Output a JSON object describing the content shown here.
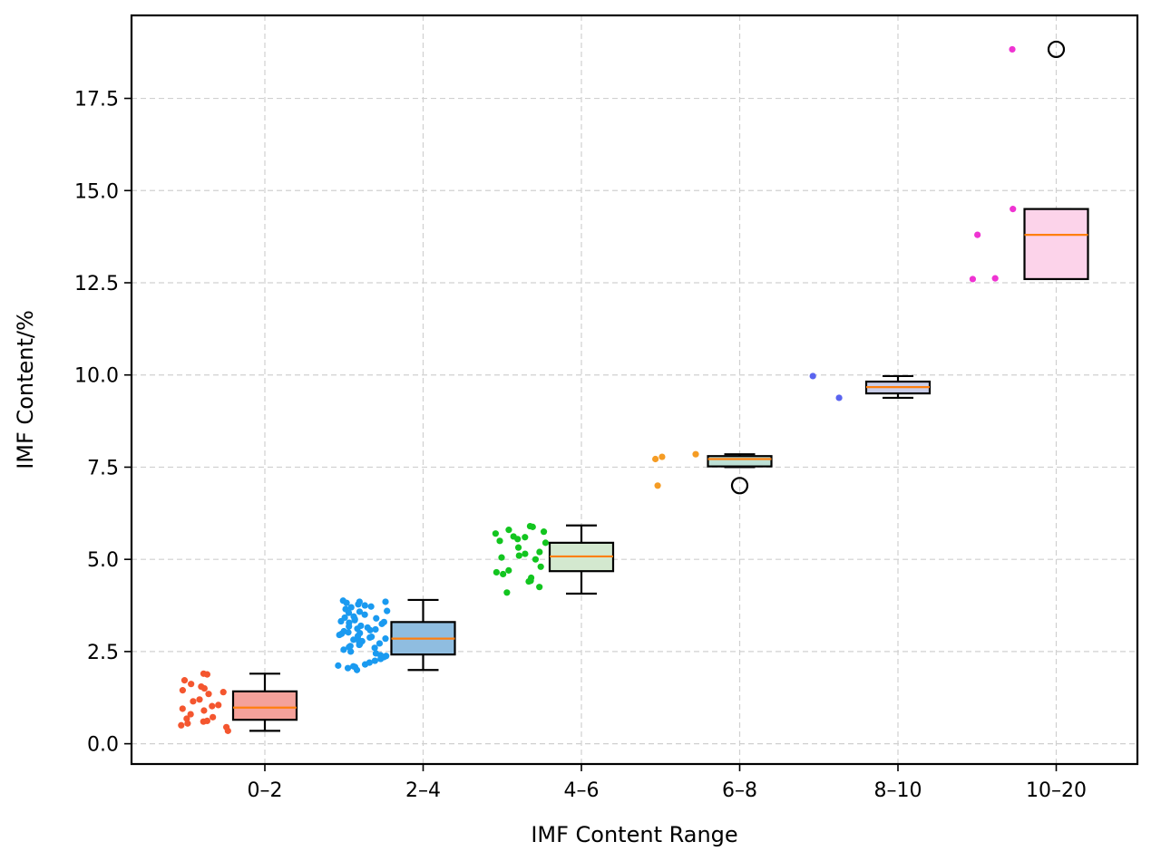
{
  "chart_data": {
    "type": "box",
    "title": "",
    "xlabel": "IMF Content Range",
    "ylabel": "IMF Content/%",
    "ylim": [
      -0.55,
      19.75
    ],
    "yticks": [
      0.0,
      2.5,
      5.0,
      7.5,
      10.0,
      12.5,
      15.0,
      17.5
    ],
    "ytick_labels": [
      "0.0",
      "2.5",
      "5.0",
      "7.5",
      "10.0",
      "12.5",
      "15.0",
      "17.5"
    ],
    "grid": true,
    "categories": [
      "0–2",
      "2–4",
      "4–6",
      "6–8",
      "8–10",
      "10–20"
    ],
    "boxes": [
      {
        "category": "0–2",
        "whislo": 0.35,
        "q1": 0.65,
        "median": 0.98,
        "q3": 1.42,
        "whishi": 1.9,
        "fliers": [],
        "fill": "#f4a19a",
        "point_color": "#f4562f"
      },
      {
        "category": "2–4",
        "whislo": 2.0,
        "q1": 2.42,
        "median": 2.85,
        "q3": 3.3,
        "whishi": 3.9,
        "fliers": [],
        "fill": "#8fbde0",
        "point_color": "#1a9af0"
      },
      {
        "category": "4–6",
        "whislo": 4.07,
        "q1": 4.68,
        "median": 5.08,
        "q3": 5.45,
        "whishi": 5.92,
        "fliers": [],
        "fill": "#d3e8cf",
        "point_color": "#12c51f"
      },
      {
        "category": "6–8",
        "whislo": 7.5,
        "q1": 7.52,
        "median": 7.72,
        "q3": 7.8,
        "whishi": 7.85,
        "fliers": [
          7.0
        ],
        "fill": "#bde0d5",
        "point_color": "#f59c24"
      },
      {
        "category": "8–10",
        "whislo": 9.38,
        "q1": 9.5,
        "median": 9.67,
        "q3": 9.82,
        "whishi": 9.97,
        "fliers": [],
        "fill": "#c9cde8",
        "point_color": "#5a64ef"
      },
      {
        "category": "10–20",
        "whislo": 12.6,
        "q1": 12.6,
        "median": 13.8,
        "q3": 14.5,
        "whishi": 14.5,
        "fliers": [
          18.83
        ],
        "fill": "#fcd3ea",
        "point_color": "#ef33d2"
      }
    ],
    "jitter_points": [
      {
        "category": "0–2",
        "values": [
          1.9,
          1.88,
          1.72,
          1.62,
          1.55,
          1.5,
          1.45,
          1.4,
          1.35,
          1.2,
          1.15,
          1.05,
          1.02,
          0.95,
          0.9,
          0.8,
          0.72,
          0.68,
          0.62,
          0.6,
          0.55,
          0.5,
          0.45,
          0.35
        ]
      },
      {
        "category": "2–4",
        "values": [
          3.88,
          3.85,
          3.85,
          3.82,
          3.78,
          3.75,
          3.72,
          3.7,
          3.65,
          3.6,
          3.58,
          3.55,
          3.5,
          3.45,
          3.42,
          3.4,
          3.38,
          3.35,
          3.32,
          3.3,
          3.28,
          3.25,
          3.2,
          3.18,
          3.15,
          3.12,
          3.1,
          3.08,
          3.05,
          3.02,
          3.0,
          2.98,
          2.95,
          2.92,
          2.9,
          2.88,
          2.85,
          2.82,
          2.8,
          2.78,
          2.75,
          2.72,
          2.7,
          2.68,
          2.65,
          2.62,
          2.6,
          2.55,
          2.5,
          2.45,
          2.4,
          2.38,
          2.35,
          2.3,
          2.25,
          2.2,
          2.15,
          2.12,
          2.1,
          2.08,
          2.05,
          2.0
        ]
      },
      {
        "category": "4–6",
        "values": [
          5.9,
          5.88,
          5.8,
          5.75,
          5.7,
          5.62,
          5.6,
          5.55,
          5.5,
          5.45,
          5.32,
          5.2,
          5.15,
          5.1,
          5.05,
          5.0,
          4.8,
          4.7,
          4.65,
          4.6,
          4.5,
          4.42,
          4.4,
          4.25,
          4.1
        ]
      },
      {
        "category": "6–8",
        "values": [
          7.85,
          7.78,
          7.72,
          7.0
        ]
      },
      {
        "category": "8–10",
        "values": [
          9.97,
          9.38
        ]
      },
      {
        "category": "10–20",
        "values": [
          18.83,
          14.5,
          13.8,
          12.62,
          12.6
        ]
      }
    ]
  }
}
